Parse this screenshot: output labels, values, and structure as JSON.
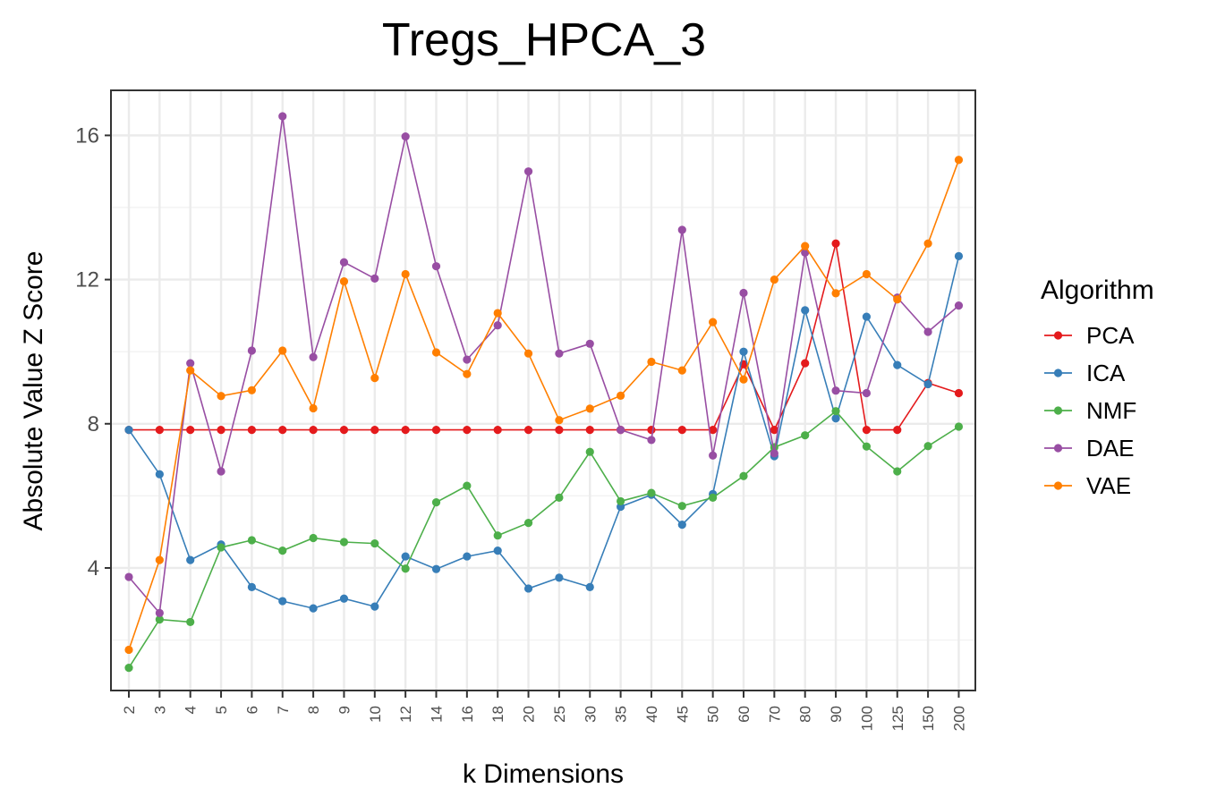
{
  "chart_data": {
    "type": "line",
    "title": "Tregs_HPCA_3",
    "xlabel": "k Dimensions",
    "ylabel": "Absolute Value Z Score",
    "categories": [
      "2",
      "3",
      "4",
      "5",
      "6",
      "7",
      "8",
      "9",
      "10",
      "12",
      "14",
      "16",
      "18",
      "20",
      "25",
      "30",
      "35",
      "40",
      "45",
      "50",
      "60",
      "70",
      "80",
      "90",
      "100",
      "125",
      "150",
      "200"
    ],
    "yticks": [
      4,
      8,
      12,
      16
    ],
    "ylim": [
      0.6,
      17.25
    ],
    "grid": true,
    "legend": {
      "title": "Algorithm",
      "placement": "right"
    },
    "series": [
      {
        "name": "PCA",
        "color": "#E41A1C",
        "values": [
          7.83,
          7.83,
          7.83,
          7.83,
          7.83,
          7.83,
          7.83,
          7.83,
          7.83,
          7.83,
          7.83,
          7.83,
          7.83,
          7.83,
          7.83,
          7.83,
          7.83,
          7.83,
          7.83,
          7.83,
          9.65,
          7.83,
          9.68,
          13.0,
          7.83,
          7.83,
          9.13,
          8.85
        ]
      },
      {
        "name": "ICA",
        "color": "#377EB8",
        "values": [
          7.83,
          6.6,
          4.22,
          4.65,
          3.47,
          3.08,
          2.88,
          3.15,
          2.93,
          4.32,
          3.97,
          4.32,
          4.48,
          3.43,
          3.73,
          3.47,
          5.7,
          6.03,
          5.2,
          6.05,
          10.0,
          7.1,
          11.15,
          8.15,
          10.97,
          9.63,
          9.1,
          12.65
        ]
      },
      {
        "name": "NMF",
        "color": "#4DAF4A",
        "values": [
          1.23,
          2.57,
          2.5,
          4.57,
          4.77,
          4.48,
          4.83,
          4.72,
          4.68,
          3.98,
          5.82,
          6.28,
          4.9,
          5.25,
          5.95,
          7.22,
          5.85,
          6.08,
          5.72,
          5.95,
          6.55,
          7.35,
          7.68,
          8.35,
          7.37,
          6.68,
          7.38,
          7.92
        ]
      },
      {
        "name": "DAE",
        "color": "#984EA3",
        "values": [
          3.75,
          2.75,
          9.68,
          6.68,
          10.03,
          16.53,
          9.85,
          12.48,
          12.03,
          15.97,
          12.37,
          9.78,
          10.73,
          15.0,
          9.95,
          10.22,
          7.83,
          7.55,
          13.38,
          7.12,
          11.63,
          7.18,
          12.75,
          8.92,
          8.85,
          11.5,
          10.55,
          11.28
        ]
      },
      {
        "name": "VAE",
        "color": "#FF7F00",
        "values": [
          1.73,
          4.22,
          9.48,
          8.77,
          8.93,
          10.03,
          8.43,
          11.95,
          9.27,
          12.15,
          9.98,
          9.38,
          11.07,
          9.95,
          8.1,
          8.42,
          8.78,
          9.72,
          9.48,
          10.82,
          9.23,
          12.0,
          12.93,
          11.62,
          12.15,
          11.45,
          13.0,
          15.32
        ]
      }
    ]
  }
}
